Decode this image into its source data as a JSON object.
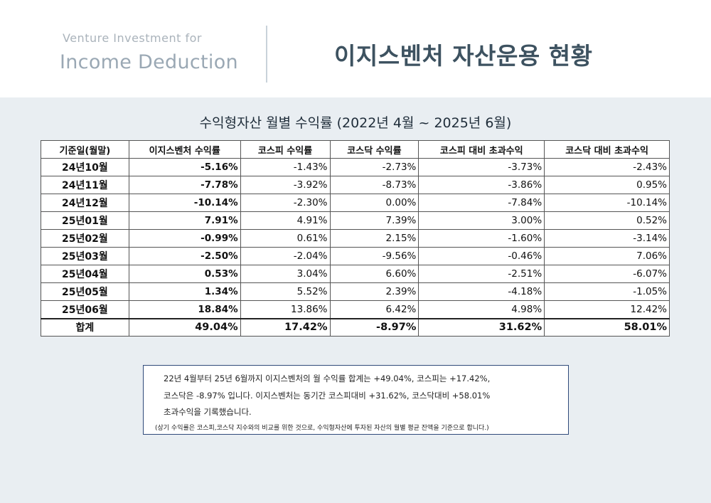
{
  "header": {
    "brand_top": "Venture Investment for",
    "brand_bottom": "Income Deduction",
    "title": "이지스벤처 자산운용 현황"
  },
  "table": {
    "title": "수익형자산 월별 수익률 (2022년 4월 ~ 2025년 6월)",
    "columns": [
      "기준일(월말)",
      "이지스벤처 수익률",
      "코스피 수익률",
      "코스닥 수익률",
      "코스피 대비 초과수익",
      "코스닥 대비 초과수익"
    ],
    "rows": [
      [
        "24년10월",
        "-5.16%",
        "-1.43%",
        "-2.73%",
        "-3.73%",
        "-2.43%"
      ],
      [
        "24년11월",
        "-7.78%",
        "-3.92%",
        "-8.73%",
        "-3.86%",
        "0.95%"
      ],
      [
        "24년12월",
        "-10.14%",
        "-2.30%",
        "0.00%",
        "-7.84%",
        "-10.14%"
      ],
      [
        "25년01월",
        "7.91%",
        "4.91%",
        "7.39%",
        "3.00%",
        "0.52%"
      ],
      [
        "25년02월",
        "-0.99%",
        "0.61%",
        "2.15%",
        "-1.60%",
        "-3.14%"
      ],
      [
        "25년03월",
        "-2.50%",
        "-2.04%",
        "-9.56%",
        "-0.46%",
        "7.06%"
      ],
      [
        "25년04월",
        "0.53%",
        "3.04%",
        "6.60%",
        "-2.51%",
        "-6.07%"
      ],
      [
        "25년05월",
        "1.34%",
        "5.52%",
        "2.39%",
        "-4.18%",
        "-1.05%"
      ],
      [
        "25년06월",
        "18.84%",
        "13.86%",
        "6.42%",
        "4.98%",
        "12.42%"
      ]
    ],
    "total": [
      "합계",
      "49.04%",
      "17.42%",
      "-8.97%",
      "31.62%",
      "58.01%"
    ]
  },
  "note": {
    "line1": "22년 4월부터 25년 6월까지 이지스벤처의 월 수익률 합계는 +49.04%, 코스피는 +17.42%,",
    "line2": "코스닥은 -8.97% 입니다. 이지스벤처는 동기간 코스피대비 +31.62%, 코스닥대비 +58.01%",
    "line3": "초과수익을 기록했습니다.",
    "footnote": "(상기 수익률은 코스피,코스닥 지수와의 비교를 위한 것으로, 수익형자산에 투자된 자산의 월별 평균 잔액을 기준으로 합니다.)"
  }
}
